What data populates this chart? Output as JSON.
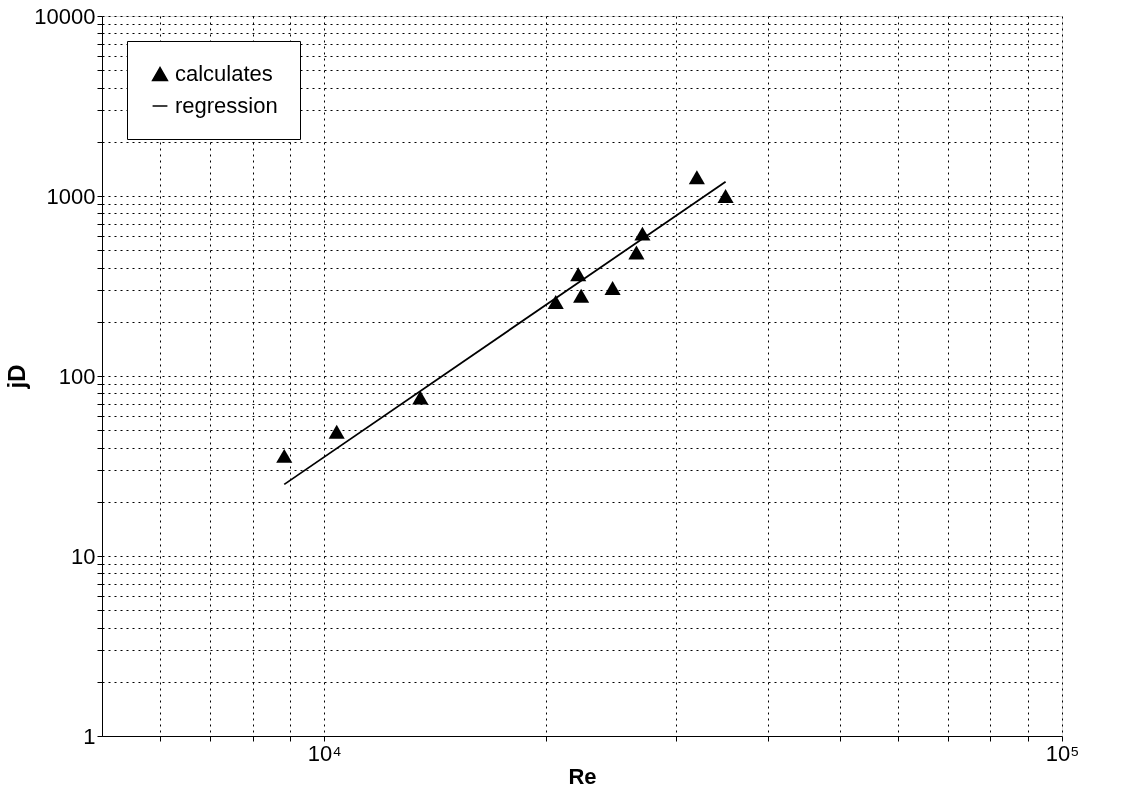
{
  "chart_data": {
    "type": "scatter",
    "xlabel": "Re",
    "ylabel": "jD",
    "log": "xy",
    "grid": true,
    "legend": "top left",
    "xlim": [
      5000,
      100000
    ],
    "ylim": [
      1,
      10000
    ],
    "xticks": [
      {
        "value": 6000,
        "label": null
      },
      {
        "value": 7000,
        "label": null
      },
      {
        "value": 8000,
        "label": null
      },
      {
        "value": 9000,
        "label": null
      },
      {
        "value": 10000,
        "label": "10⁴"
      },
      {
        "value": 20000,
        "label": null
      },
      {
        "value": 30000,
        "label": null
      },
      {
        "value": 40000,
        "label": null
      },
      {
        "value": 50000,
        "label": null
      },
      {
        "value": 60000,
        "label": null
      },
      {
        "value": 70000,
        "label": null
      },
      {
        "value": 80000,
        "label": null
      },
      {
        "value": 90000,
        "label": null
      },
      {
        "value": 100000,
        "label": "10⁵"
      }
    ],
    "yticks": [
      1,
      {
        "value": 2,
        "label": null
      },
      {
        "value": 3,
        "label": null
      },
      {
        "value": 4,
        "label": null
      },
      {
        "value": 5,
        "label": null
      },
      {
        "value": 6,
        "label": null
      },
      {
        "value": 7,
        "label": null
      },
      {
        "value": 8,
        "label": null
      },
      {
        "value": 9,
        "label": null
      },
      10,
      {
        "value": 20,
        "label": null
      },
      {
        "value": 30,
        "label": null
      },
      {
        "value": 40,
        "label": null
      },
      {
        "value": 50,
        "label": null
      },
      {
        "value": 60,
        "label": null
      },
      {
        "value": 70,
        "label": null
      },
      {
        "value": 80,
        "label": null
      },
      {
        "value": 90,
        "label": null
      },
      100,
      {
        "value": 200,
        "label": null
      },
      {
        "value": 300,
        "label": null
      },
      {
        "value": 400,
        "label": null
      },
      {
        "value": 500,
        "label": null
      },
      {
        "value": 600,
        "label": null
      },
      {
        "value": 700,
        "label": null
      },
      {
        "value": 800,
        "label": null
      },
      {
        "value": 900,
        "label": null
      },
      1000,
      {
        "value": 2000,
        "label": null
      },
      {
        "value": 3000,
        "label": null
      },
      {
        "value": 4000,
        "label": null
      },
      {
        "value": 5000,
        "label": null
      },
      {
        "value": 6000,
        "label": null
      },
      {
        "value": 7000,
        "label": null
      },
      {
        "value": 8000,
        "label": null
      },
      {
        "value": 9000,
        "label": null
      },
      10000
    ],
    "series": [
      {
        "name": "calculates",
        "marker": "triangle",
        "color": "#000000",
        "x": [
          8830,
          10400,
          13500,
          20600,
          22100,
          22300,
          24600,
          26500,
          27000,
          32000,
          35000
        ],
        "values": [
          36,
          49,
          76,
          258,
          368,
          279,
          308,
          486,
          618,
          1270,
          1000
        ]
      },
      {
        "name": "regression",
        "type": "line",
        "marker": "none",
        "line_style": "solid",
        "color": "#000000",
        "x": [
          8830,
          35000
        ],
        "values": [
          25,
          1200
        ]
      }
    ]
  }
}
